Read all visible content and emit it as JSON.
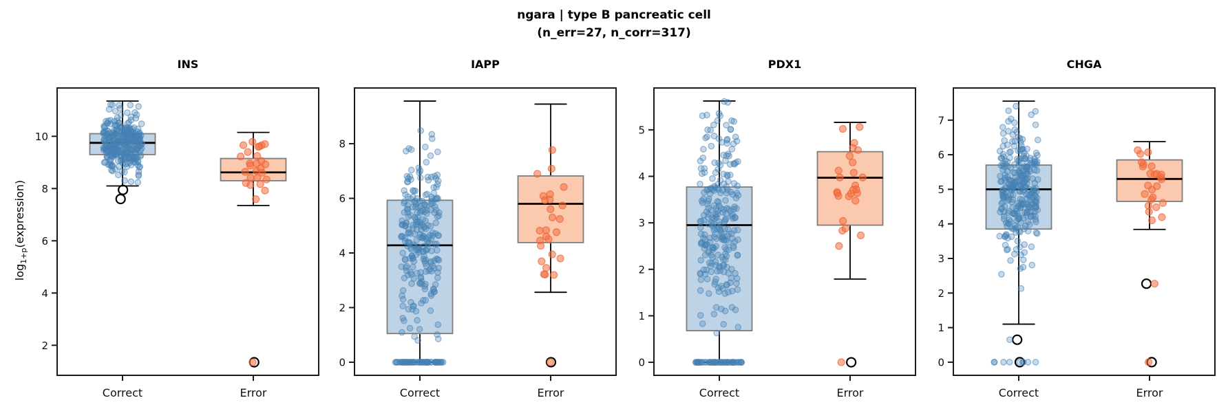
{
  "figure": {
    "suptitle_line1": "ngara | type B pancreatic cell",
    "suptitle_line2": "(n_err=27, n_corr=317)",
    "n_err": 27,
    "n_corr": 317,
    "ylabel": {
      "prefix": "log",
      "sub": "1+p",
      "suffix": "(expression)"
    }
  },
  "colors": {
    "correct_point_stroke": "#4682b4",
    "correct_point_fill": "rgba(70,130,180,0.30)",
    "correct_box_fill": "#bed3e6",
    "error_point_stroke": "rgba(238,95,45,0.75)",
    "error_point_fill": "rgba(243,112,68,0.55)",
    "error_box_fill": "#fbc9ae",
    "box_edge": "#7d7d7d",
    "median_line": "#000000",
    "whisker": "#000000",
    "flier_edge": "#000000",
    "spine": "#1a1a1a",
    "tick_label": "#111111"
  },
  "chart_data": [
    {
      "type": "box+strip",
      "gene": "INS",
      "categories": [
        "Correct",
        "Error"
      ],
      "ylim": [
        0.85,
        11.85
      ],
      "yticks": [
        2,
        4,
        6,
        8,
        10
      ],
      "groups": [
        {
          "label": "Correct",
          "n": 317,
          "color_role": "correct",
          "box": {
            "whisker_low": 8.1,
            "q1": 9.3,
            "median": 9.75,
            "q3": 10.1,
            "whisker_high": 11.35
          },
          "fliers": [
            7.95,
            7.6
          ],
          "scatter": {
            "n": 317,
            "mean": 9.7,
            "sd": 0.62,
            "min": 7.55,
            "max": 11.38,
            "zeros": 0,
            "extras": []
          }
        },
        {
          "label": "Error",
          "n": 27,
          "color_role": "error",
          "box": {
            "whisker_low": 7.35,
            "q1": 8.3,
            "median": 8.62,
            "q3": 9.15,
            "whisker_high": 10.15
          },
          "fliers": [
            1.35
          ],
          "scatter": {
            "n": 26,
            "mean": 8.7,
            "sd": 0.68,
            "min": 7.36,
            "max": 10.16,
            "zeros": 0,
            "extras": [
              1.35
            ]
          }
        }
      ]
    },
    {
      "type": "box+strip",
      "gene": "IAPP",
      "categories": [
        "Correct",
        "Error"
      ],
      "ylim": [
        -0.48,
        10.04
      ],
      "yticks": [
        0,
        2,
        4,
        6,
        8
      ],
      "groups": [
        {
          "label": "Correct",
          "n": 317,
          "color_role": "correct",
          "box": {
            "whisker_low": 0.0,
            "q1": 1.05,
            "median": 4.28,
            "q3": 5.93,
            "whisker_high": 9.56
          },
          "fliers": [],
          "scatter": {
            "n": 255,
            "mean": 4.5,
            "sd": 1.8,
            "min": 0.55,
            "max": 9.56,
            "zeros": 62,
            "extras": []
          }
        },
        {
          "label": "Error",
          "n": 27,
          "color_role": "error",
          "box": {
            "whisker_low": 2.56,
            "q1": 4.38,
            "median": 5.8,
            "q3": 6.82,
            "whisker_high": 9.45
          },
          "fliers": [
            0
          ],
          "scatter": {
            "n": 26,
            "mean": 5.7,
            "sd": 1.45,
            "min": 2.57,
            "max": 9.45,
            "zeros": 1,
            "extras": []
          }
        }
      ]
    },
    {
      "type": "box+strip",
      "gene": "PDX1",
      "categories": [
        "Correct",
        "Error"
      ],
      "ylim": [
        -0.28,
        5.9
      ],
      "yticks": [
        0,
        1,
        2,
        3,
        4,
        5
      ],
      "groups": [
        {
          "label": "Correct",
          "n": 317,
          "color_role": "correct",
          "box": {
            "whisker_low": 0.0,
            "q1": 0.68,
            "median": 2.95,
            "q3": 3.77,
            "whisker_high": 5.62
          },
          "fliers": [],
          "scatter": {
            "n": 257,
            "mean": 3.0,
            "sd": 1.05,
            "min": 0.55,
            "max": 5.62,
            "zeros": 60,
            "extras": []
          }
        },
        {
          "label": "Error",
          "n": 27,
          "color_role": "error",
          "box": {
            "whisker_low": 1.79,
            "q1": 2.95,
            "median": 3.97,
            "q3": 4.53,
            "whisker_high": 5.16
          },
          "fliers": [
            0
          ],
          "scatter": {
            "n": 26,
            "mean": 3.8,
            "sd": 0.85,
            "min": 1.8,
            "max": 5.16,
            "zeros": 1,
            "extras": []
          }
        }
      ]
    },
    {
      "type": "box+strip",
      "gene": "CHGA",
      "categories": [
        "Correct",
        "Error"
      ],
      "ylim": [
        -0.38,
        7.93
      ],
      "yticks": [
        0,
        1,
        2,
        3,
        4,
        5,
        6,
        7
      ],
      "groups": [
        {
          "label": "Correct",
          "n": 317,
          "color_role": "correct",
          "box": {
            "whisker_low": 1.1,
            "q1": 3.85,
            "median": 5.0,
            "q3": 5.7,
            "whisker_high": 7.55
          },
          "fliers": [
            0.65,
            0
          ],
          "scatter": {
            "n": 307,
            "mean": 4.95,
            "sd": 0.92,
            "min": 1.1,
            "max": 7.55,
            "zeros": 9,
            "extras": [
              0.65
            ]
          }
        },
        {
          "label": "Error",
          "n": 27,
          "color_role": "error",
          "box": {
            "whisker_low": 3.84,
            "q1": 4.65,
            "median": 5.3,
            "q3": 5.85,
            "whisker_high": 6.38
          },
          "fliers": [
            2.27,
            0
          ],
          "scatter": {
            "n": 25,
            "mean": 5.25,
            "sd": 0.62,
            "min": 3.85,
            "max": 6.38,
            "zeros": 1,
            "extras": [
              2.27
            ]
          }
        }
      ]
    }
  ]
}
